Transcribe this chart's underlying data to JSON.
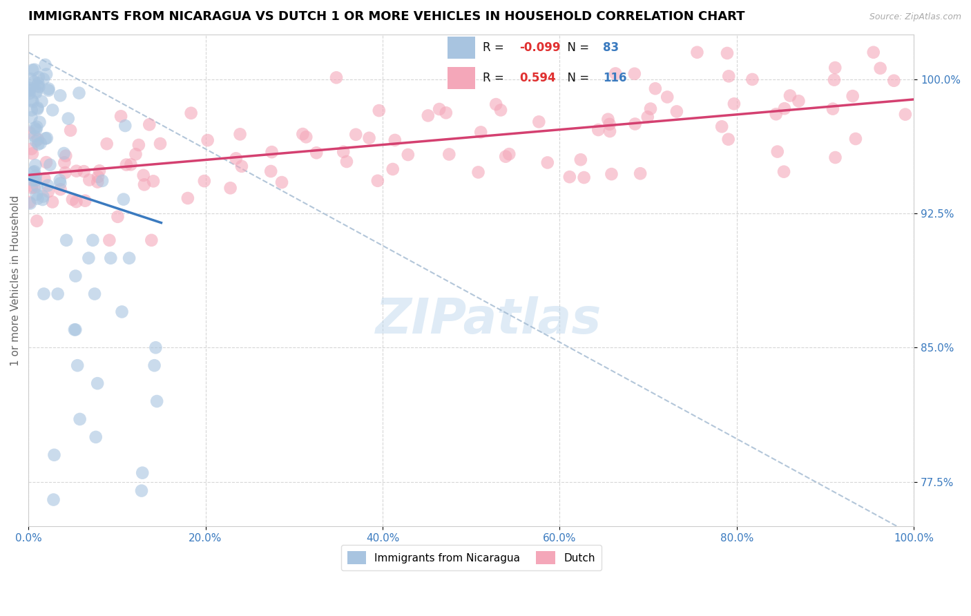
{
  "title": "IMMIGRANTS FROM NICARAGUA VS DUTCH 1 OR MORE VEHICLES IN HOUSEHOLD CORRELATION CHART",
  "source": "Source: ZipAtlas.com",
  "ylabel": "1 or more Vehicles in Household",
  "legend_label1": "Immigrants from Nicaragua",
  "legend_label2": "Dutch",
  "r1": -0.099,
  "n1": 83,
  "r2": 0.594,
  "n2": 116,
  "xlim": [
    0.0,
    100.0
  ],
  "ylim": [
    75.0,
    102.5
  ],
  "yticks": [
    77.5,
    85.0,
    92.5,
    100.0
  ],
  "xtick_vals": [
    0,
    20,
    40,
    60,
    80,
    100
  ],
  "color1": "#a8c4e0",
  "color2": "#f4a7b9",
  "line_color1": "#3a7abf",
  "line_color2": "#d44070",
  "dashed_color": "#a0b8d0",
  "title_fontsize": 13,
  "axis_label_fontsize": 11,
  "tick_fontsize": 11,
  "background_color": "#ffffff",
  "legend_box_color": "#a8c4e0",
  "legend_box_color2": "#f4a7b9",
  "r_color": "#e03030",
  "n_color": "#3a7abf"
}
